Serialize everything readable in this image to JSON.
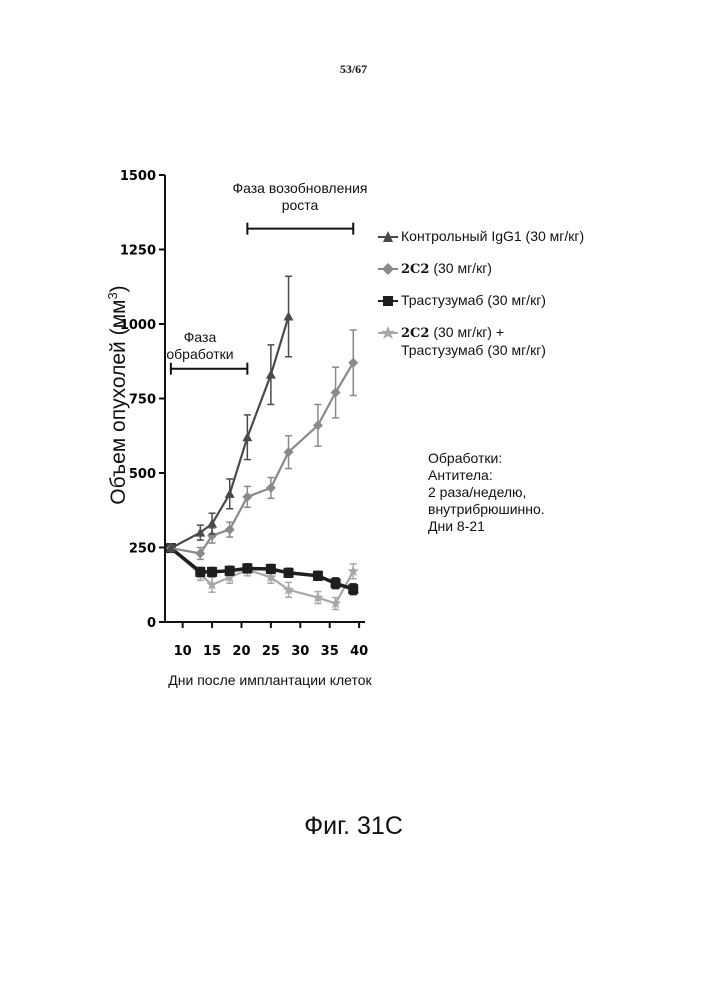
{
  "page_number": "53/67",
  "figure_caption": "Фиг. 31C",
  "colors": {
    "control": "#4a4a4a",
    "antibody_2c2": "#8a8a8a",
    "trastuzumab": "#1e1e1e",
    "combo": "#a8a8a8"
  },
  "chart_data": {
    "type": "line",
    "xlabel": "Дни после имплантации клеток",
    "ylabel": "Объем опухолей (мм",
    "ylabel_superscript": "3",
    "ylabel_close": ")",
    "xlim": [
      7,
      41
    ],
    "ylim": [
      0,
      1500
    ],
    "xticks": [
      10,
      15,
      20,
      25,
      30,
      35,
      40
    ],
    "yticks": [
      0,
      250,
      500,
      750,
      1000,
      1250,
      1500
    ],
    "grid": false,
    "legend_position": "right",
    "series": [
      {
        "name": "Контрольный IgG1 (30 мг/кг)",
        "marker": "triangle",
        "x": [
          8,
          13,
          15,
          18,
          21,
          25,
          28
        ],
        "y": [
          248,
          300,
          330,
          430,
          620,
          830,
          1025
        ],
        "err": [
          10,
          25,
          35,
          50,
          75,
          100,
          135
        ]
      },
      {
        "name_code": "2C2",
        "name": " (30 мг/кг)",
        "marker": "diamond",
        "x": [
          8,
          13,
          15,
          18,
          21,
          25,
          28,
          33,
          36,
          39
        ],
        "y": [
          248,
          230,
          290,
          310,
          420,
          450,
          570,
          660,
          770,
          870
        ],
        "err": [
          10,
          20,
          25,
          25,
          35,
          35,
          55,
          70,
          85,
          110
        ]
      },
      {
        "name": "Трастузумаб (30 мг/кг)",
        "marker": "square",
        "x": [
          8,
          13,
          15,
          18,
          21,
          25,
          28,
          33,
          36,
          39
        ],
        "y": [
          248,
          168,
          168,
          172,
          180,
          178,
          165,
          155,
          130,
          110
        ],
        "err": [
          10,
          15,
          15,
          15,
          15,
          15,
          15,
          15,
          18,
          18
        ]
      },
      {
        "name_code": "2C2",
        "name": " (30 мг/кг) +",
        "name_line2": "Трастузумаб (30 мг/кг)",
        "marker": "star",
        "x": [
          8,
          13,
          15,
          18,
          21,
          25,
          28,
          33,
          36,
          39
        ],
        "y": [
          248,
          160,
          125,
          150,
          175,
          150,
          108,
          82,
          62,
          170
        ],
        "err": [
          10,
          20,
          25,
          20,
          20,
          20,
          25,
          20,
          20,
          25
        ]
      }
    ],
    "annotations": [
      {
        "text": "Фаза обработки",
        "line1": "Фаза",
        "line2": "обработки",
        "x_start": 8,
        "x_end": 21,
        "y": 850
      },
      {
        "text": "Фаза возобновления роста",
        "line1": "Фаза возобновления",
        "line2": "роста",
        "x_start": 21,
        "x_end": 39,
        "y": 1320
      }
    ]
  },
  "notes": {
    "title": "Обработки:",
    "line1": "Антитела:",
    "line2": "2 раза/неделю,",
    "line3": "внутрибрюшинно.",
    "line4": "Дни  8-21"
  }
}
